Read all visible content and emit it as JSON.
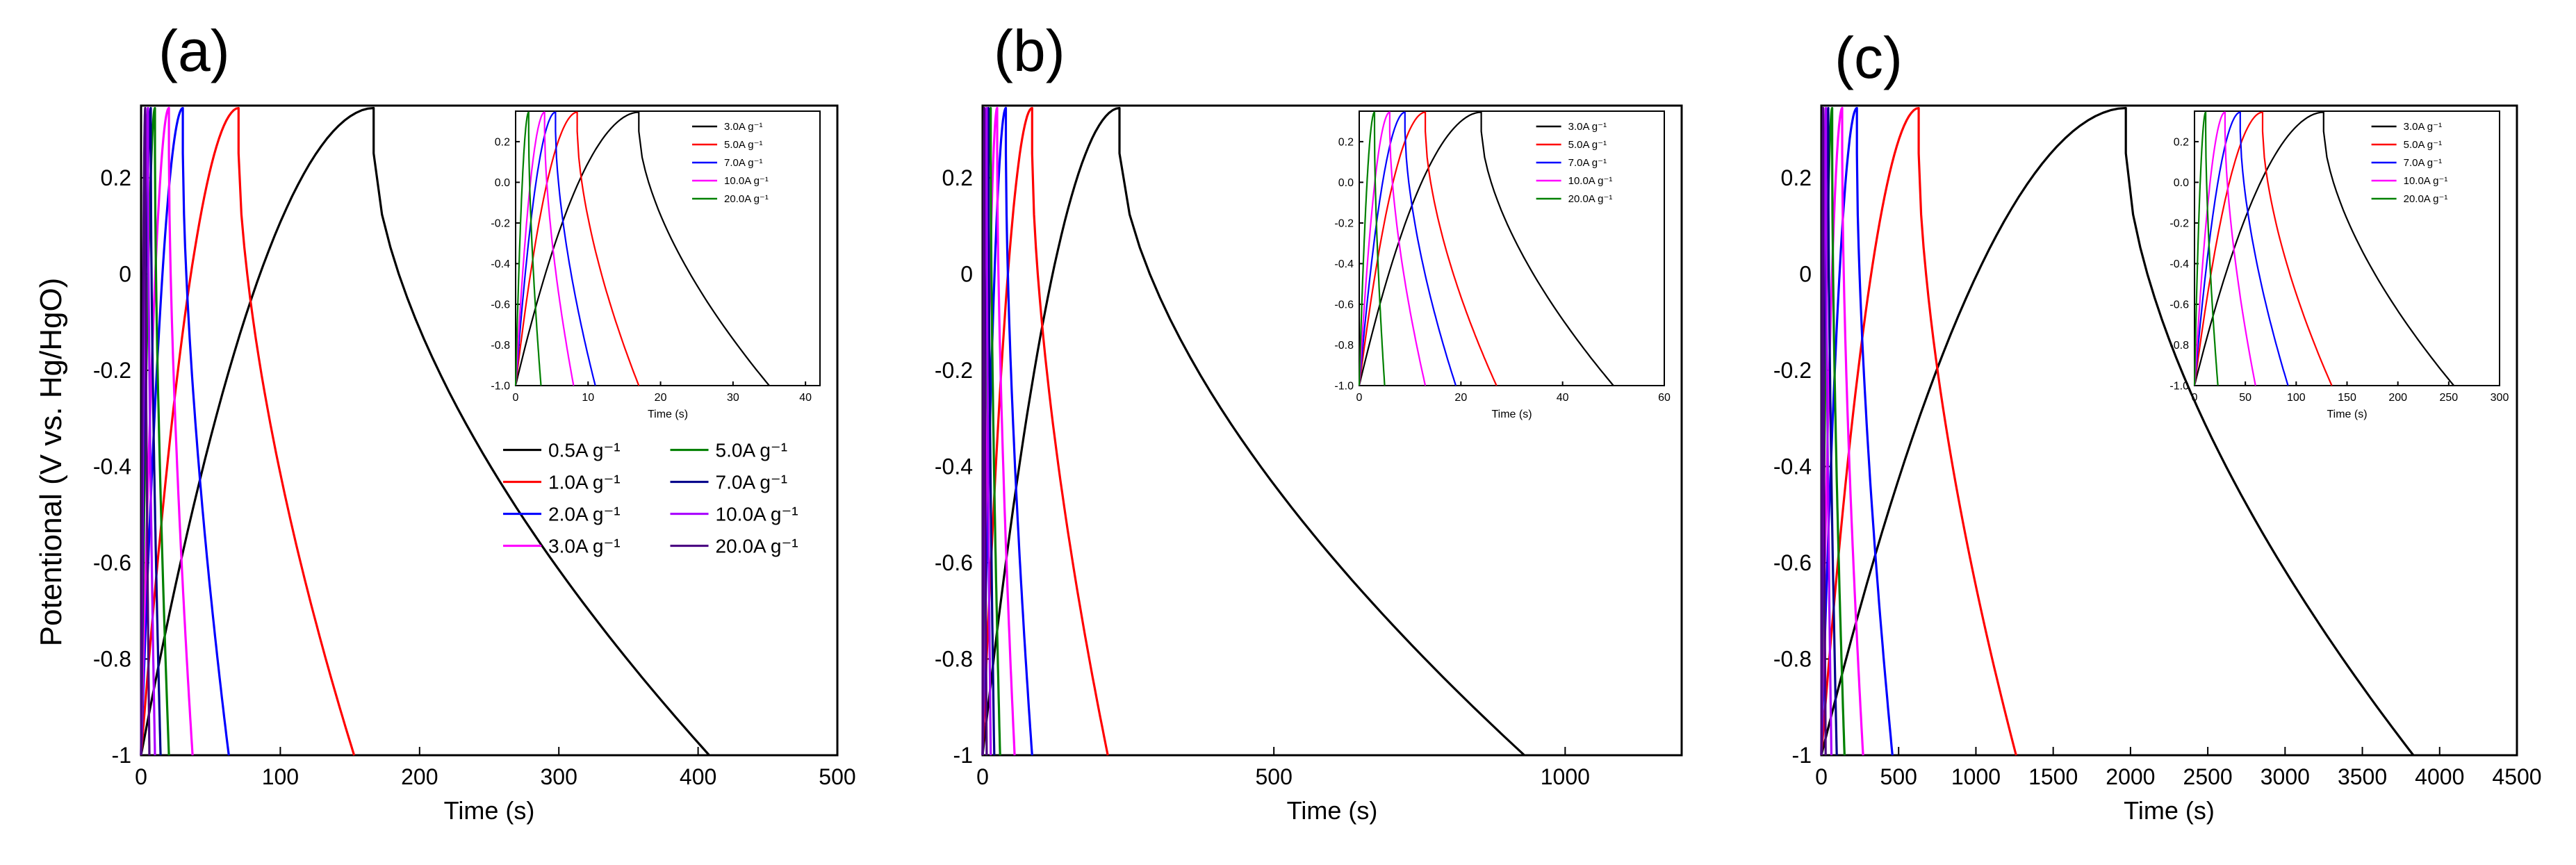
{
  "figure": {
    "ylabel": "Potentional (V vs. Hg/HgO)"
  },
  "chart_data": [
    {
      "id": "a",
      "panel_label": "(a)",
      "type": "line",
      "xlabel": "Time (s)",
      "xlim": [
        0,
        500
      ],
      "ylim": [
        -1,
        0.35
      ],
      "xticks": [
        0,
        100,
        200,
        300,
        400,
        500
      ],
      "yticks": [
        -1,
        -0.8,
        -0.6,
        -0.4,
        -0.2,
        0,
        0.2
      ],
      "ytick_labels": [
        "-1",
        "-0.8",
        "-0.6",
        "-0.4",
        "-0.2",
        "0",
        "0.2"
      ],
      "legend_position": "lower-right",
      "legend_columns": 2,
      "series": [
        {
          "name": "0.5A g⁻¹",
          "color": "#000000",
          "peak": 167,
          "end": 408
        },
        {
          "name": "1.0A g⁻¹",
          "color": "#ff0000",
          "peak": 70,
          "end": 153
        },
        {
          "name": "2.0A g⁻¹",
          "color": "#0000ff",
          "peak": 30,
          "end": 63
        },
        {
          "name": "3.0A g⁻¹",
          "color": "#ff00ff",
          "peak": 20,
          "end": 37
        },
        {
          "name": "5.0A g⁻¹",
          "color": "#008000",
          "peak": 10,
          "end": 20
        },
        {
          "name": "7.0A g⁻¹",
          "color": "#00008b",
          "peak": 7,
          "end": 14
        },
        {
          "name": "10.0A g⁻¹",
          "color": "#aa00ff",
          "peak": 5,
          "end": 10
        },
        {
          "name": "20.0A g⁻¹",
          "color": "#4b0082",
          "peak": 3,
          "end": 6
        }
      ],
      "inset": {
        "xlabel": "Time (s)",
        "xlim": [
          0,
          42
        ],
        "ylim": [
          -1,
          0.35
        ],
        "xticks": [
          0,
          10,
          20,
          30,
          40
        ],
        "yticks": [
          -1,
          -0.8,
          -0.6,
          -0.4,
          -0.2,
          0,
          0.2
        ],
        "ytick_labels": [
          "-1.0",
          "-0.8",
          "-0.6",
          "-0.4",
          "-0.2",
          "0.0",
          "0.2"
        ],
        "series": [
          {
            "name": "3.0A g⁻¹",
            "color": "#000000",
            "peak": 17,
            "end": 35
          },
          {
            "name": "5.0A g⁻¹",
            "color": "#ff0000",
            "peak": 8.5,
            "end": 17
          },
          {
            "name": "7.0A g⁻¹",
            "color": "#0000ff",
            "peak": 5.5,
            "end": 11
          },
          {
            "name": "10.0A g⁻¹",
            "color": "#ff00ff",
            "peak": 4,
            "end": 8
          },
          {
            "name": "20.0A g⁻¹",
            "color": "#008000",
            "peak": 1.8,
            "end": 3.5
          }
        ]
      }
    },
    {
      "id": "b",
      "panel_label": "(b)",
      "type": "line",
      "xlabel": "Time (s)",
      "xlim": [
        0,
        1200
      ],
      "ylim": [
        -1,
        0.35
      ],
      "xticks": [
        0,
        500,
        1000
      ],
      "yticks": [
        -1,
        -0.8,
        -0.6,
        -0.4,
        -0.2,
        0,
        0.2
      ],
      "ytick_labels": [
        "-1",
        "-0.8",
        "-0.6",
        "-0.4",
        "-0.2",
        "0",
        "0.2"
      ],
      "series": [
        {
          "name": "0.5A g⁻¹",
          "color": "#000000",
          "peak": 235,
          "end": 930
        },
        {
          "name": "1.0A g⁻¹",
          "color": "#ff0000",
          "peak": 85,
          "end": 215
        },
        {
          "name": "2.0A g⁻¹",
          "color": "#0000ff",
          "peak": 40,
          "end": 85
        },
        {
          "name": "3.0A g⁻¹",
          "color": "#ff00ff",
          "peak": 25,
          "end": 55
        },
        {
          "name": "5.0A g⁻¹",
          "color": "#008000",
          "peak": 14,
          "end": 30
        },
        {
          "name": "7.0A g⁻¹",
          "color": "#00008b",
          "peak": 10,
          "end": 20
        },
        {
          "name": "10.0A g⁻¹",
          "color": "#aa00ff",
          "peak": 7,
          "end": 14
        },
        {
          "name": "20.0A g⁻¹",
          "color": "#4b0082",
          "peak": 3,
          "end": 7
        }
      ],
      "inset": {
        "xlabel": "Time (s)",
        "xlim": [
          0,
          60
        ],
        "ylim": [
          -1,
          0.35
        ],
        "xticks": [
          0,
          20,
          40,
          60
        ],
        "yticks": [
          -1,
          -0.8,
          -0.6,
          -0.4,
          -0.2,
          0,
          0.2
        ],
        "ytick_labels": [
          "-1.0",
          "-0.8",
          "-0.6",
          "-0.4",
          "-0.2",
          "0.0",
          "0.2"
        ],
        "series": [
          {
            "name": "3.0A g⁻¹",
            "color": "#000000",
            "peak": 24,
            "end": 50
          },
          {
            "name": "5.0A g⁻¹",
            "color": "#ff0000",
            "peak": 13,
            "end": 27
          },
          {
            "name": "7.0A g⁻¹",
            "color": "#0000ff",
            "peak": 9,
            "end": 19
          },
          {
            "name": "10.0A g⁻¹",
            "color": "#ff00ff",
            "peak": 6,
            "end": 13
          },
          {
            "name": "20.0A g⁻¹",
            "color": "#008000",
            "peak": 3,
            "end": 5
          }
        ]
      }
    },
    {
      "id": "c",
      "panel_label": "(c)",
      "type": "line",
      "xlabel": "Time (s)",
      "xlim": [
        0,
        4500
      ],
      "ylim": [
        -1,
        0.35
      ],
      "xticks": [
        0,
        500,
        1000,
        1500,
        2000,
        2500,
        3000,
        3500,
        4000,
        4500
      ],
      "yticks": [
        -1,
        -0.8,
        -0.6,
        -0.4,
        -0.2,
        0,
        0.2
      ],
      "ytick_labels": [
        "-1",
        "-0.8",
        "-0.6",
        "-0.4",
        "-0.2",
        "0",
        "0.2"
      ],
      "series": [
        {
          "name": "0.5A g⁻¹",
          "color": "#000000",
          "peak": 1970,
          "end": 3830
        },
        {
          "name": "1.0A g⁻¹",
          "color": "#ff0000",
          "peak": 630,
          "end": 1260
        },
        {
          "name": "2.0A g⁻¹",
          "color": "#0000ff",
          "peak": 230,
          "end": 460
        },
        {
          "name": "3.0A g⁻¹",
          "color": "#ff00ff",
          "peak": 135,
          "end": 270
        },
        {
          "name": "5.0A g⁻¹",
          "color": "#008000",
          "peak": 70,
          "end": 150
        },
        {
          "name": "7.0A g⁻¹",
          "color": "#00008b",
          "peak": 45,
          "end": 100
        },
        {
          "name": "10.0A g⁻¹",
          "color": "#aa00ff",
          "peak": 30,
          "end": 65
        },
        {
          "name": "20.0A g⁻¹",
          "color": "#4b0082",
          "peak": 12,
          "end": 28
        }
      ],
      "inset": {
        "xlabel": "Time (s)",
        "xlim": [
          0,
          300
        ],
        "ylim": [
          -1,
          0.35
        ],
        "xticks": [
          0,
          50,
          100,
          150,
          200,
          250,
          300
        ],
        "yticks": [
          -1,
          -0.8,
          -0.6,
          -0.4,
          -0.2,
          0,
          0.2
        ],
        "ytick_labels": [
          "-1.0",
          "-0.8",
          "-0.6",
          "-0.4",
          "-0.2",
          "0.0",
          "0.2"
        ],
        "series": [
          {
            "name": "3.0A g⁻¹",
            "color": "#000000",
            "peak": 127,
            "end": 255
          },
          {
            "name": "5.0A g⁻¹",
            "color": "#ff0000",
            "peak": 67,
            "end": 135
          },
          {
            "name": "7.0A g⁻¹",
            "color": "#0000ff",
            "peak": 45,
            "end": 92
          },
          {
            "name": "10.0A g⁻¹",
            "color": "#ff00ff",
            "peak": 30,
            "end": 60
          },
          {
            "name": "20.0A g⁻¹",
            "color": "#008000",
            "peak": 11,
            "end": 23
          }
        ]
      }
    }
  ]
}
